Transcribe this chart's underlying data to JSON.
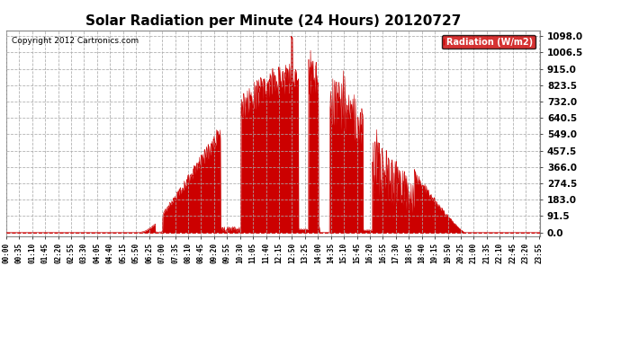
{
  "title": "Solar Radiation per Minute (24 Hours) 20120727",
  "copyright_text": "Copyright 2012 Cartronics.com",
  "ylabel": "Radiation (W/m2)",
  "bg_color": "#ffffff",
  "plot_bg_color": "#ffffff",
  "bar_color": "#cc0000",
  "dashed_line_color": "#aaaaaa",
  "yticks": [
    0.0,
    91.5,
    183.0,
    274.5,
    366.0,
    457.5,
    549.0,
    640.5,
    732.0,
    823.5,
    915.0,
    1006.5,
    1098.0
  ],
  "ymax": 1130,
  "ymin": -20,
  "legend_bg": "#cc0000",
  "legend_text_color": "#ffffff",
  "sunrise_min": 355,
  "sunset_min": 1235
}
